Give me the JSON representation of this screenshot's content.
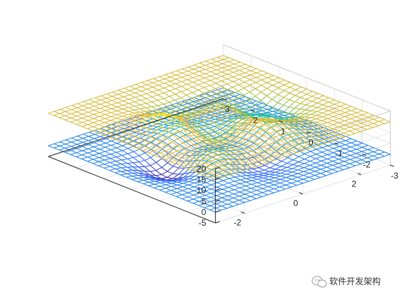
{
  "chart_data": {
    "type": "mesh3d",
    "title": "",
    "xlabel": "",
    "ylabel": "",
    "zlabel": "",
    "xlim": [
      -3,
      3
    ],
    "ylim": [
      -3,
      3
    ],
    "zlim": [
      -5,
      20
    ],
    "x_ticks": [
      "-3",
      "-2",
      "-1",
      "0",
      "1",
      "2",
      "3"
    ],
    "y_ticks": [
      "-2",
      "0",
      "2"
    ],
    "z_ticks": [
      "-5",
      "0",
      "5",
      "10",
      "15",
      "20"
    ],
    "grid": true,
    "colormap": [
      "#3e26a8",
      "#2c6bfc",
      "#10a6d9",
      "#28c59b",
      "#a6c23a",
      "#f6b73d",
      "#f9fb0e"
    ],
    "grid_resolution": 30,
    "series": [
      {
        "surface": "peaks(x,y)",
        "z_offset": 0,
        "z_range": [
          -6.55,
          8.07
        ]
      },
      {
        "surface": "-peaks(x,y) + 15",
        "z_offset": 15,
        "z_range": [
          6.93,
          21.55
        ]
      }
    ]
  },
  "watermark": {
    "text": "软件开发架构",
    "icon": "wechat-icon"
  }
}
